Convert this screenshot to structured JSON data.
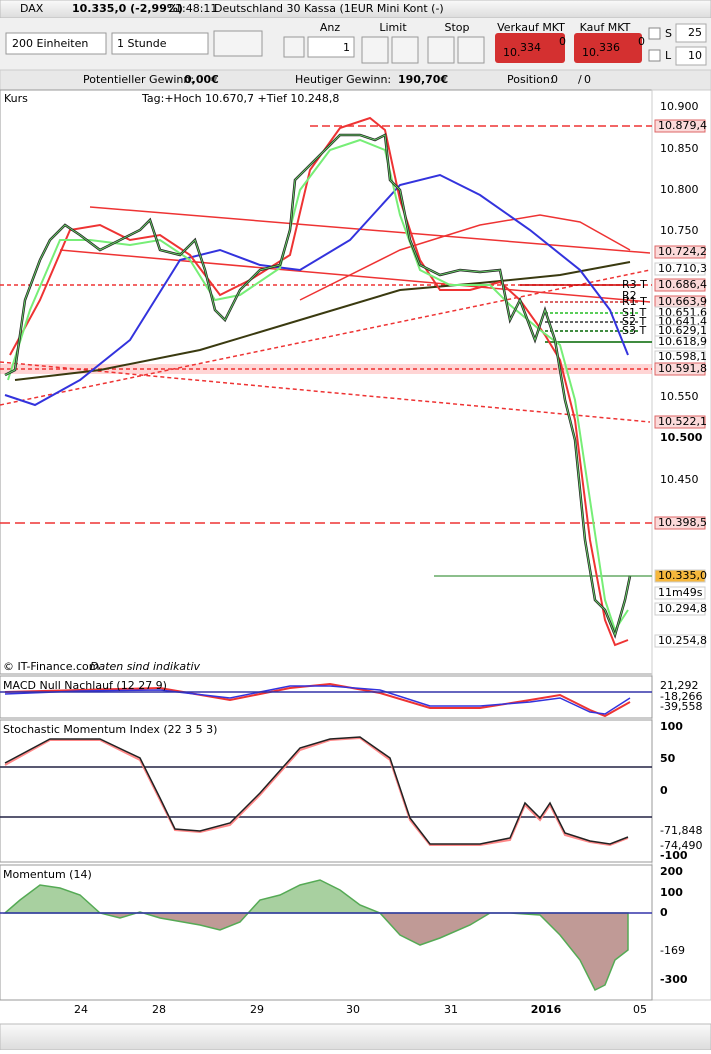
{
  "toolbar": {
    "symbol": "DAX",
    "quote": "10.335,0 (-2,99%)",
    "time": "21:48:11",
    "instrument": "Deutschland 30 Kassa (1EUR Mini Kont (-)"
  },
  "trade_panel": {
    "quantity_select": "200 Einheiten",
    "interval_select": "1 Stunde",
    "labels": [
      "Anz",
      "Limit",
      "Stop",
      "Verkauf MKT",
      "Kauf MKT"
    ],
    "quantity": "1",
    "sell": {
      "prefix": "10.",
      "big": "334",
      "suffix": "0"
    },
    "buy": {
      "prefix": "10.",
      "big": "336",
      "suffix": "0"
    },
    "s_label": "S",
    "s_value": "25",
    "l_label": "L",
    "l_value": "10"
  },
  "summary": {
    "potential_label": "Potentieller Gewinn:",
    "potential": "0,00€",
    "today_label": "Heutiger Gewinn:",
    "today": "190,70€",
    "position_label": "Position:",
    "position": "0",
    "separator": "/",
    "position_2": "0"
  },
  "chart": {
    "panel_title": "Kurs",
    "info": "Tag:+Hoch 10.670,7 +Tief 10.248,8",
    "y_ticks": [
      "10.900",
      "10.850",
      "10.800",
      "10.750",
      "10.550",
      "10.500",
      "10.450"
    ],
    "price_labels": [
      {
        "text": "10.879,4",
        "kind": "red"
      },
      {
        "text": "10.724,2",
        "kind": "red"
      },
      {
        "text": "10.710,3",
        "kind": "plain"
      },
      {
        "text": "10.686,4",
        "kind": "red"
      },
      {
        "text": "10.663,9",
        "kind": "red"
      },
      {
        "text": "10.651,6",
        "kind": "green"
      },
      {
        "text": "10.641,4",
        "kind": "plain"
      },
      {
        "text": "10.629,1",
        "kind": "plain"
      },
      {
        "text": "10.618,9",
        "kind": "green"
      },
      {
        "text": "10.598,1",
        "kind": "blue"
      },
      {
        "text": "10.591,8",
        "kind": "red"
      },
      {
        "text": "10.522,1",
        "kind": "red"
      },
      {
        "text": "10.398,5",
        "kind": "red"
      },
      {
        "text": "10.335,0",
        "kind": "current"
      },
      {
        "text": "11m49s",
        "kind": "green"
      },
      {
        "text": "10.294,8",
        "kind": "green"
      },
      {
        "text": "10.254,8",
        "kind": "green"
      }
    ],
    "level_labels": [
      "R3 T",
      "R2",
      "R1 T",
      "S1 T",
      "S2 T",
      "S3 T"
    ],
    "footer_copyright": "© IT-Finance.com",
    "footer_note": "Daten sind indikativ",
    "x_labels": [
      "24",
      "28",
      "29",
      "30",
      "31",
      "2016",
      "05"
    ]
  },
  "indicators": {
    "macd": {
      "title": "MACD Null Nachlauf (12 27 9)",
      "labels": [
        "21,292",
        "-18,266",
        "-39,558"
      ]
    },
    "smi": {
      "title": "Stochastic Momentum Index (22 3 5 3)",
      "labels": [
        "100",
        "50",
        "0",
        "-71,848",
        "-74,490",
        "-100"
      ]
    },
    "momentum": {
      "title": "Momentum (14)",
      "labels": [
        "200",
        "100",
        "0",
        "-169",
        "-300"
      ]
    }
  }
}
